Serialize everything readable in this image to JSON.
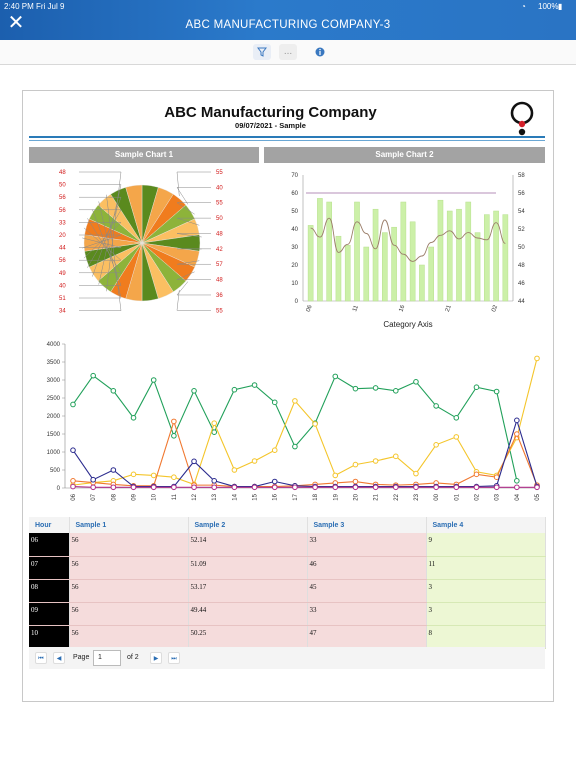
{
  "status_bar": {
    "time": "2:40 PM",
    "date": "Fri Jul 9",
    "battery": "100%"
  },
  "app": {
    "title": "ABC MANUFACTURING COMPANY-3"
  },
  "toolbar": {
    "filter_icon": "filter-icon",
    "more_icon": "more-icon",
    "info_icon": "info-icon",
    "more_label": "..."
  },
  "report": {
    "title": "ABC Manufacturing Company",
    "subtitle": "09/07/2021 - Sample",
    "logo_icon": "company-logo"
  },
  "chart_data": [
    {
      "type": "pie",
      "title": "Sample Chart 1",
      "labels_left": [
        "48",
        "50",
        "56",
        "56",
        "33",
        "20",
        "44",
        "56",
        "49",
        "40",
        "51",
        "34"
      ],
      "labels_right": [
        "55",
        "40",
        "55",
        "50",
        "48",
        "42",
        "57",
        "48",
        "36",
        "55"
      ],
      "colors": [
        "#5a8a1e",
        "#f4a64a",
        "#f07c1e",
        "#8db33a",
        "#fbbf62"
      ]
    },
    {
      "type": "bar",
      "title": "Sample Chart 2",
      "xlabel": "Category Axis",
      "x_ticks": [
        "06",
        "11",
        "16",
        "21",
        "02"
      ],
      "ylim": [
        0,
        70
      ],
      "y_ticks": [
        "0",
        "10",
        "20",
        "30",
        "40",
        "50",
        "60",
        "70"
      ],
      "y2lim": [
        44,
        58
      ],
      "y2_ticks": [
        "44",
        "46",
        "48",
        "50",
        "52",
        "54",
        "56",
        "58"
      ],
      "values": [
        42,
        57,
        55,
        36,
        31,
        55,
        30,
        51,
        38,
        41,
        55,
        44,
        20,
        30,
        56,
        50,
        51,
        55,
        38,
        48,
        50,
        48
      ],
      "line_values": [
        52.1,
        51.1,
        53.2,
        49.4,
        50.3,
        52.8,
        51.5,
        49.8,
        53.0,
        50.2,
        49.2,
        48.4,
        49.0,
        50.5,
        51.3,
        51.8,
        50.9,
        51.6,
        51.0,
        50.8,
        52.7,
        50.4
      ],
      "reference_line": 60,
      "colors": {
        "bar": "#ccf0a8",
        "bar_edge": "#b7e08e",
        "line": "#9b7e6a",
        "reference": "#b58fb8"
      }
    },
    {
      "type": "line",
      "x": [
        "06",
        "07",
        "08",
        "09",
        "10",
        "11",
        "12",
        "13",
        "14",
        "15",
        "16",
        "17",
        "18",
        "19",
        "20",
        "21",
        "22",
        "23",
        "00",
        "01",
        "02",
        "03",
        "04",
        "05"
      ],
      "ylim": [
        0,
        4000
      ],
      "y_ticks": [
        "0",
        "500",
        "1000",
        "1500",
        "2000",
        "2500",
        "3000",
        "3500",
        "4000"
      ],
      "series": [
        {
          "color": "#21a05a",
          "values": [
            2320,
            3120,
            2700,
            1950,
            3000,
            1450,
            2700,
            1550,
            2730,
            2860,
            2380,
            1150,
            1800,
            3100,
            2760,
            2780,
            2700,
            2950,
            2280,
            1950,
            2800,
            2680,
            200,
            null
          ]
        },
        {
          "color": "#f4c52a",
          "values": [
            80,
            150,
            200,
            380,
            350,
            300,
            100,
            1800,
            500,
            750,
            1050,
            2420,
            1780,
            350,
            650,
            750,
            880,
            400,
            1200,
            1420,
            450,
            350,
            1400,
            3600
          ]
        },
        {
          "color": "#f07830",
          "values": [
            200,
            150,
            100,
            60,
            60,
            1850,
            80,
            80,
            40,
            40,
            40,
            60,
            100,
            140,
            180,
            100,
            80,
            100,
            140,
            100,
            380,
            300,
            1500,
            80
          ]
        },
        {
          "color": "#2b2b8e",
          "values": [
            1050,
            230,
            500,
            40,
            40,
            40,
            740,
            200,
            40,
            40,
            180,
            60,
            40,
            40,
            40,
            40,
            40,
            40,
            40,
            40,
            40,
            60,
            1880,
            40
          ]
        },
        {
          "color": "#b0308a",
          "values": [
            40,
            20,
            20,
            20,
            20,
            20,
            20,
            20,
            20,
            20,
            20,
            20,
            20,
            20,
            20,
            20,
            20,
            20,
            20,
            20,
            20,
            20,
            20,
            20
          ]
        }
      ]
    }
  ],
  "grid": {
    "columns": [
      "Hour",
      "Sample 1",
      "Sample 2",
      "Sample 3",
      "Sample 4"
    ],
    "rows": [
      [
        "06",
        "56",
        "52.14",
        "33",
        "9"
      ],
      [
        "07",
        "56",
        "51.09",
        "46",
        "11"
      ],
      [
        "08",
        "56",
        "53.17",
        "45",
        "3"
      ],
      [
        "09",
        "56",
        "49.44",
        "33",
        "3"
      ],
      [
        "10",
        "56",
        "50.25",
        "47",
        "8"
      ]
    ]
  },
  "pager": {
    "page_label": "Page",
    "page_value": "1",
    "of_label": "of 2",
    "first_icon": "first-page-icon",
    "prev_icon": "prev-page-icon",
    "next_icon": "next-page-icon",
    "last_icon": "last-page-icon",
    "first": "⏮",
    "prev": "◀",
    "next": "▶",
    "last": "⏭"
  }
}
